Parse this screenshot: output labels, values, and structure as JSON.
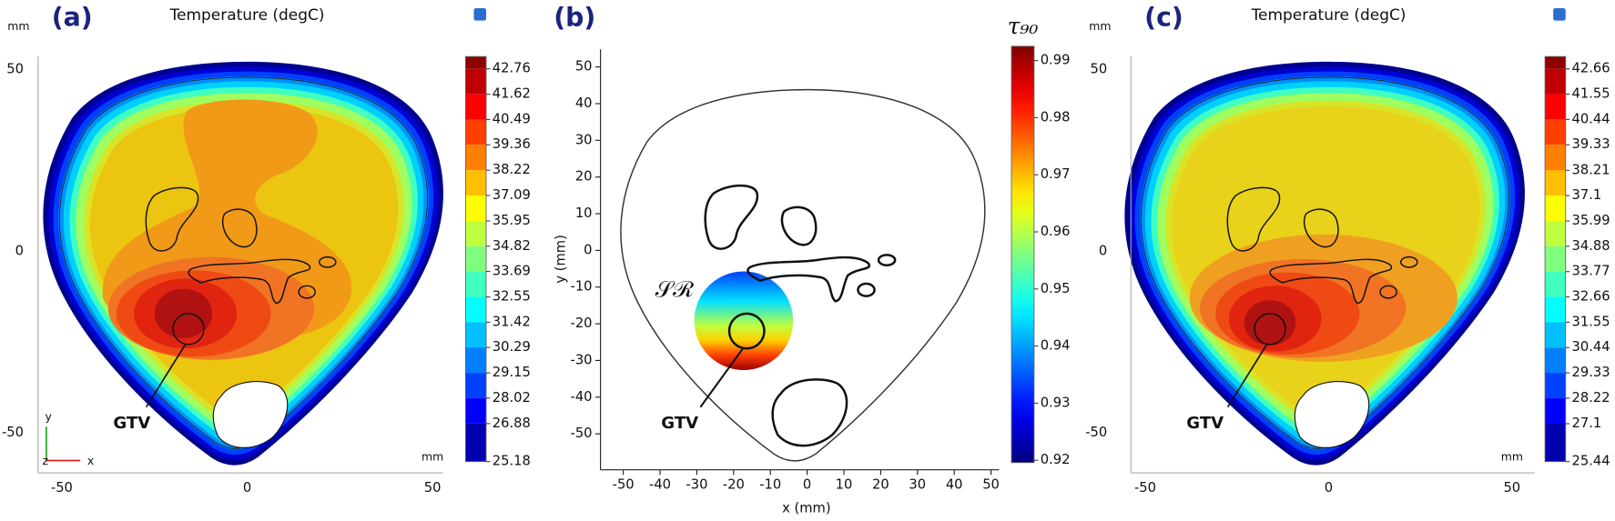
{
  "chart_data": [
    {
      "type": "contour",
      "label": "(a)",
      "title": "Temperature (degC)",
      "unit_top": "mm",
      "unit_bottom": "mm",
      "annotation": "GTV",
      "triad": [
        "y",
        "z",
        "x"
      ],
      "xlim": [
        -56.4,
        52.8
      ],
      "ylim": [
        -61,
        53.6
      ],
      "xticks": [
        -50,
        0,
        50
      ],
      "yticks": [
        50,
        0,
        -50
      ],
      "colormap": "jet",
      "colorbar_style": "discrete",
      "clim": [
        25.18,
        43.31
      ],
      "cticks": [
        42.76,
        41.62,
        40.49,
        39.36,
        38.22,
        37.09,
        35.95,
        34.82,
        33.69,
        32.55,
        31.42,
        30.29,
        29.15,
        28.02,
        26.88,
        25.18
      ]
    },
    {
      "type": "contour",
      "label": "(b)",
      "colorbar_title": "τ₉₀",
      "xlabel": "x (mm)",
      "ylabel": "y (mm)",
      "region_label": "𝒮ℛ",
      "annotation": "GTV",
      "xlim": [
        -56.2,
        52.2
      ],
      "ylim": [
        -59.8,
        54.8
      ],
      "xticks": [
        -50,
        -40,
        -30,
        -20,
        -10,
        0,
        10,
        20,
        30,
        40,
        50
      ],
      "yticks": [
        50,
        40,
        30,
        20,
        10,
        0,
        -10,
        -20,
        -30,
        -40,
        -50
      ],
      "colormap": "jet",
      "colorbar_style": "continuous",
      "clim": [
        0.9196,
        0.9925
      ],
      "cticks": [
        0.99,
        0.98,
        0.97,
        0.96,
        0.95,
        0.94,
        0.93,
        0.92
      ]
    },
    {
      "type": "contour",
      "label": "(c)",
      "title": "Temperature (degC)",
      "unit_top": "mm",
      "unit_bottom": "mm",
      "annotation": "GTV",
      "xlim": [
        -53.9,
        56.2
      ],
      "ylim": [
        -61,
        53.6
      ],
      "xticks": [
        -50,
        0,
        50
      ],
      "yticks": [
        50,
        0,
        -50
      ],
      "colormap": "jet",
      "colorbar_style": "discrete",
      "clim": [
        25.44,
        43.2
      ],
      "cticks": [
        42.66,
        41.55,
        40.44,
        39.33,
        38.21,
        37.1,
        35.99,
        34.88,
        33.77,
        32.66,
        31.55,
        30.44,
        29.33,
        28.22,
        27.1,
        25.44
      ]
    }
  ]
}
